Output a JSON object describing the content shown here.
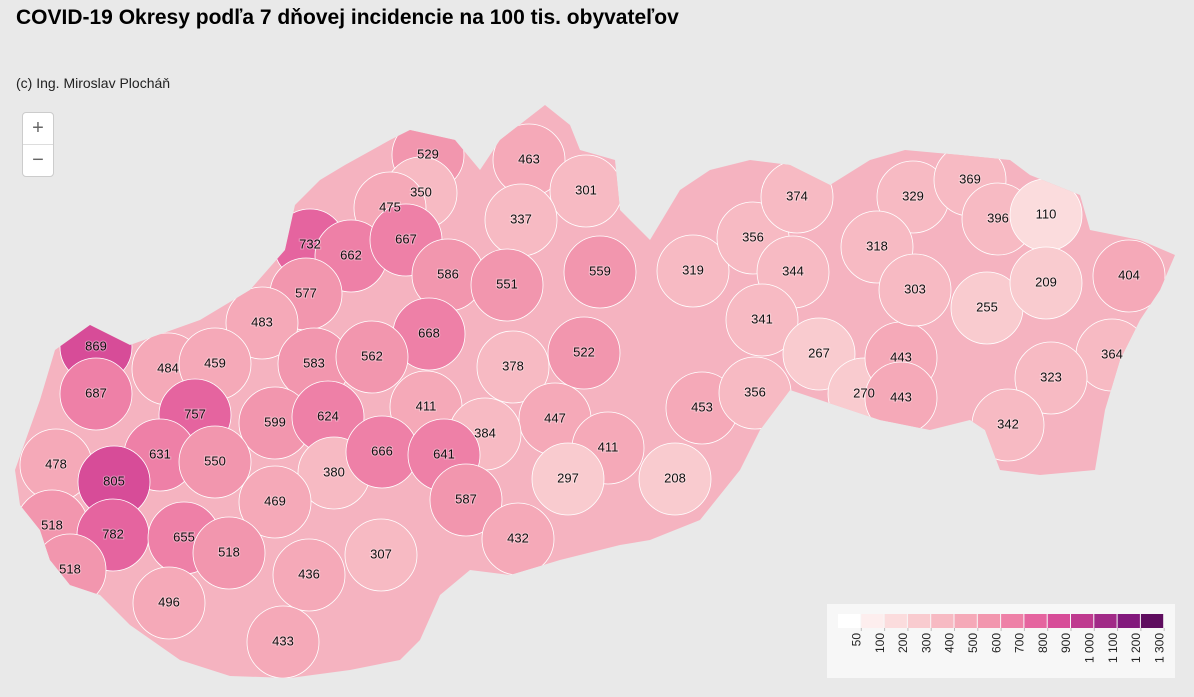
{
  "header": {
    "title": "COVID-19 Okresy podľa 7 dňovej incidencie na 100 tis. obyvateľov",
    "subtitle": "(c) Ing. Miroslav Plocháň"
  },
  "controls": {
    "zoom_in": "+",
    "zoom_out": "−"
  },
  "map": {
    "values": [
      529,
      463,
      301,
      350,
      475,
      337,
      732,
      662,
      667,
      586,
      551,
      559,
      577,
      483,
      668,
      869,
      484,
      459,
      583,
      562,
      378,
      522,
      687,
      757,
      599,
      624,
      411,
      447,
      384,
      453,
      631,
      478,
      550,
      380,
      666,
      641,
      411,
      297,
      208,
      805,
      469,
      587,
      518,
      782,
      655,
      518,
      307,
      432,
      518,
      436,
      496,
      433,
      319,
      356,
      374,
      344,
      341,
      267,
      356,
      270,
      443,
      443,
      329,
      369,
      396,
      318,
      303,
      255,
      110,
      209,
      404,
      364,
      323,
      342
    ],
    "legend": {
      "ticks": [
        50,
        100,
        200,
        300,
        400,
        500,
        600,
        700,
        800,
        900,
        {
          "value": 1000,
          "label": "1 000"
        },
        {
          "value": 1100,
          "label": "1 100"
        },
        {
          "value": 1200,
          "label": "1 200"
        },
        {
          "value": 1300,
          "label": "1 300"
        }
      ],
      "colors": [
        "#ffffff",
        "#fdeeee",
        "#fbdcdd",
        "#f9cbcf",
        "#f7bac3",
        "#f5a9b8",
        "#f296ae",
        "#ee80a7",
        "#e5649f",
        "#d74c98",
        "#bf3a8f",
        "#a12a87",
        "#82197c",
        "#5e0c5e"
      ]
    }
  }
}
